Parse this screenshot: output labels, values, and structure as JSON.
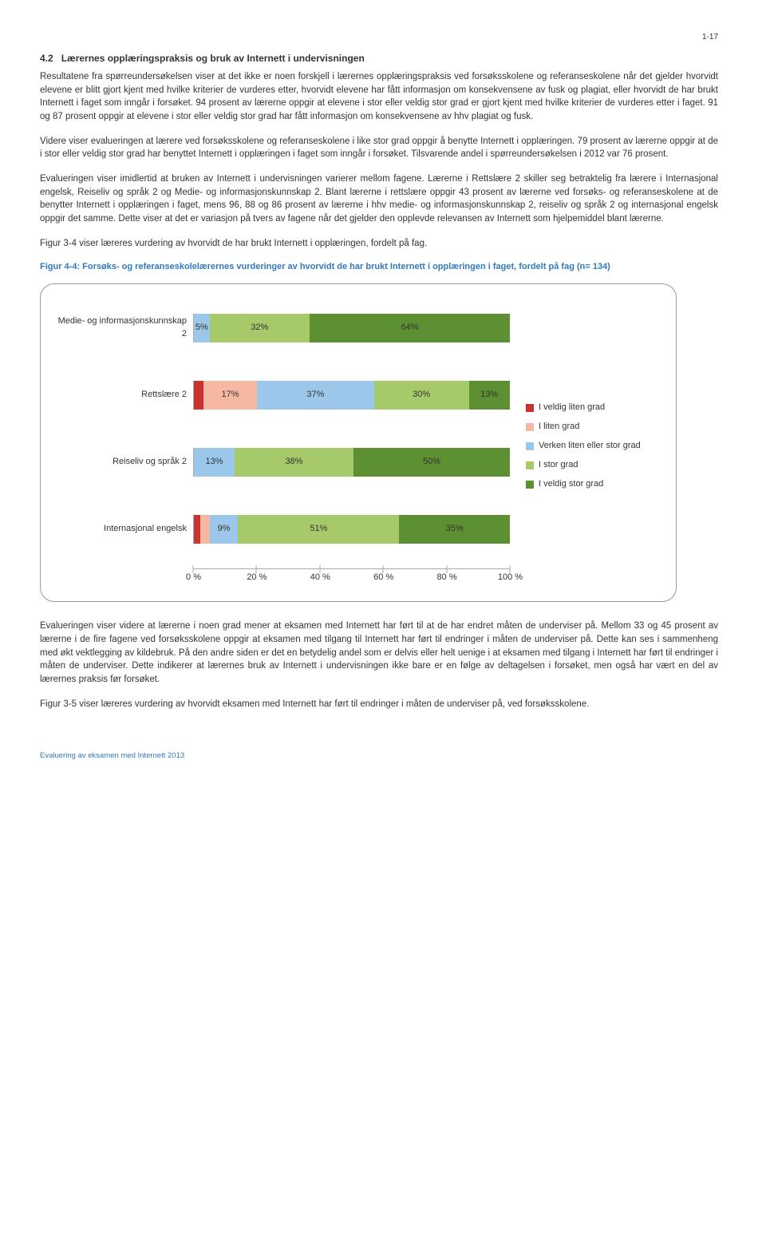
{
  "page_number": "1-17",
  "heading": {
    "num": "4.2",
    "text": "Lærernes opplæringspraksis og bruk av Internett i undervisningen"
  },
  "paragraphs": {
    "p1": "Resultatene fra spørreundersøkelsen viser at det ikke er noen forskjell i lærernes opplæringspraksis ved forsøksskolene og referanseskolene når det gjelder hvorvidt elevene er blitt gjort kjent med hvilke kriterier de vurderes etter, hvorvidt elevene har fått informasjon om konsekvensene av fusk og plagiat, eller hvorvidt de har brukt Internett i faget som inngår i forsøket. 94 prosent av lærerne oppgir at elevene i stor eller veldig stor grad er gjort kjent med hvilke kriterier de vurderes etter i faget. 91 og 87 prosent oppgir at elevene i stor eller veldig stor grad har fått informasjon om konsekvensene av hhv plagiat og fusk.",
    "p2": "Videre viser evalueringen at lærere ved forsøksskolene og referanseskolene i like stor grad oppgir å benytte Internett i opplæringen. 79 prosent av lærerne oppgir at de i stor eller veldig stor grad har benyttet Internett i opplæringen i faget som inngår i forsøket. Tilsvarende andel i spørreundersøkelsen i 2012 var 76 prosent.",
    "p3": "Evalueringen viser imidlertid at bruken av Internett i undervisningen varierer mellom fagene. Lærerne i Rettslære 2 skiller seg betraktelig fra lærere i Internasjonal engelsk, Reiseliv og språk 2 og Medie- og informasjonskunnskap 2. Blant lærerne i rettslære oppgir 43 prosent av lærerne ved forsøks- og referanseskolene at de benytter Internett i opplæringen i faget, mens 96, 88 og 86 prosent av lærerne i hhv medie- og informasjonskunnskap 2, reiseliv og språk 2 og internasjonal engelsk oppgir det samme. Dette viser at det er variasjon på tvers av fagene når det gjelder den opplevde relevansen av Internett som hjelpemiddel blant lærerne.",
    "p4": "Figur 3-4 viser læreres vurdering av hvorvidt de har brukt Internett i opplæringen, fordelt på fag.",
    "p5": "Evalueringen viser videre at lærerne i noen grad mener at eksamen med Internett har ført til at de har endret måten de underviser på. Mellom 33 og 45 prosent av lærerne i de fire fagene ved forsøksskolene oppgir at eksamen med tilgang til Internett har ført til endringer i måten de underviser på. Dette kan ses i sammenheng med økt vektlegging av kildebruk. På den andre siden er det en betydelig andel som er delvis eller helt uenige i at eksamen med tilgang i Internett har ført til endringer i måten de underviser. Dette indikerer at lærernes bruk av Internett i undervisningen ikke bare er en følge av deltagelsen i forsøket, men også har vært en del av lærernes praksis før forsøket.",
    "p6": "Figur 3-5 viser læreres vurdering av hvorvidt eksamen med Internett har ført til endringer i måten de underviser på, ved forsøksskolene."
  },
  "figure": {
    "caption": "Figur 4-4: Forsøks- og referanseskolelærernes vurderinger av hvorvidt de har brukt Internett i opplæringen i faget, fordelt på fag (n= 134)",
    "type": "stacked_bar_horizontal",
    "categories": [
      "Medie- og informasjonskunnskap 2",
      "Rettslære 2",
      "Reiseliv og språk 2",
      "Internasjonal engelsk"
    ],
    "series": [
      {
        "name": "I veldig liten grad",
        "color": "#c9322f",
        "label_color": "#c9322f"
      },
      {
        "name": "I liten grad",
        "color": "#f6b8a3",
        "label_color": "#f6b8a3"
      },
      {
        "name": "Verken liten eller stor grad",
        "color": "#9bc8ea",
        "label_color": "#9bc8ea"
      },
      {
        "name": "I stor grad",
        "color": "#a6c96a",
        "label_color": "#a6c96a"
      },
      {
        "name": "I veldig stor grad",
        "color": "#5d8f33",
        "label_color": "#5d8f33"
      }
    ],
    "data": [
      [
        0,
        0,
        5,
        32,
        64
      ],
      [
        3,
        17,
        37,
        30,
        13
      ],
      [
        0,
        0,
        13,
        38,
        50
      ],
      [
        2,
        3,
        9,
        51,
        35
      ]
    ],
    "labels": [
      [
        "",
        "",
        "5%",
        "32%",
        "64%"
      ],
      [
        "",
        "17%",
        "37%",
        "30%",
        "13%"
      ],
      [
        "",
        "",
        "13%",
        "38%",
        "50%"
      ],
      [
        "",
        "",
        "9%",
        "51%",
        "35%"
      ]
    ],
    "xlim": [
      0,
      100
    ],
    "xtick_step": 20,
    "xtick_labels": [
      "0 %",
      "20 %",
      "40 %",
      "60 %",
      "80 %",
      "100 %"
    ]
  },
  "footer": "Evaluering av eksamen med Internett 2013"
}
